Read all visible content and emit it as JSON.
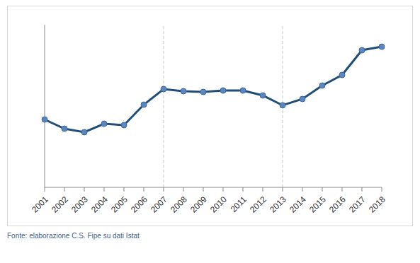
{
  "chart_data": {
    "type": "line",
    "source": "Fonte: elaborazione C.S. Fipe su dati Istat",
    "categories": [
      "2001",
      "2002",
      "2003",
      "2004",
      "2005",
      "2006",
      "2007",
      "2008",
      "2009",
      "2010",
      "2011",
      "2012",
      "2013",
      "2014",
      "2015",
      "2016",
      "2017",
      "2018"
    ],
    "values": [
      96,
      83,
      78,
      90,
      88,
      117,
      139,
      136,
      135,
      137,
      137,
      130,
      116,
      125,
      144,
      159,
      194,
      199
    ],
    "color": "#1f4e79",
    "marker": "circle",
    "ylim": [
      0,
      230
    ],
    "yticks": [],
    "vlines": [
      "2007",
      "2013"
    ],
    "tick_labels": "x",
    "grid": false
  }
}
